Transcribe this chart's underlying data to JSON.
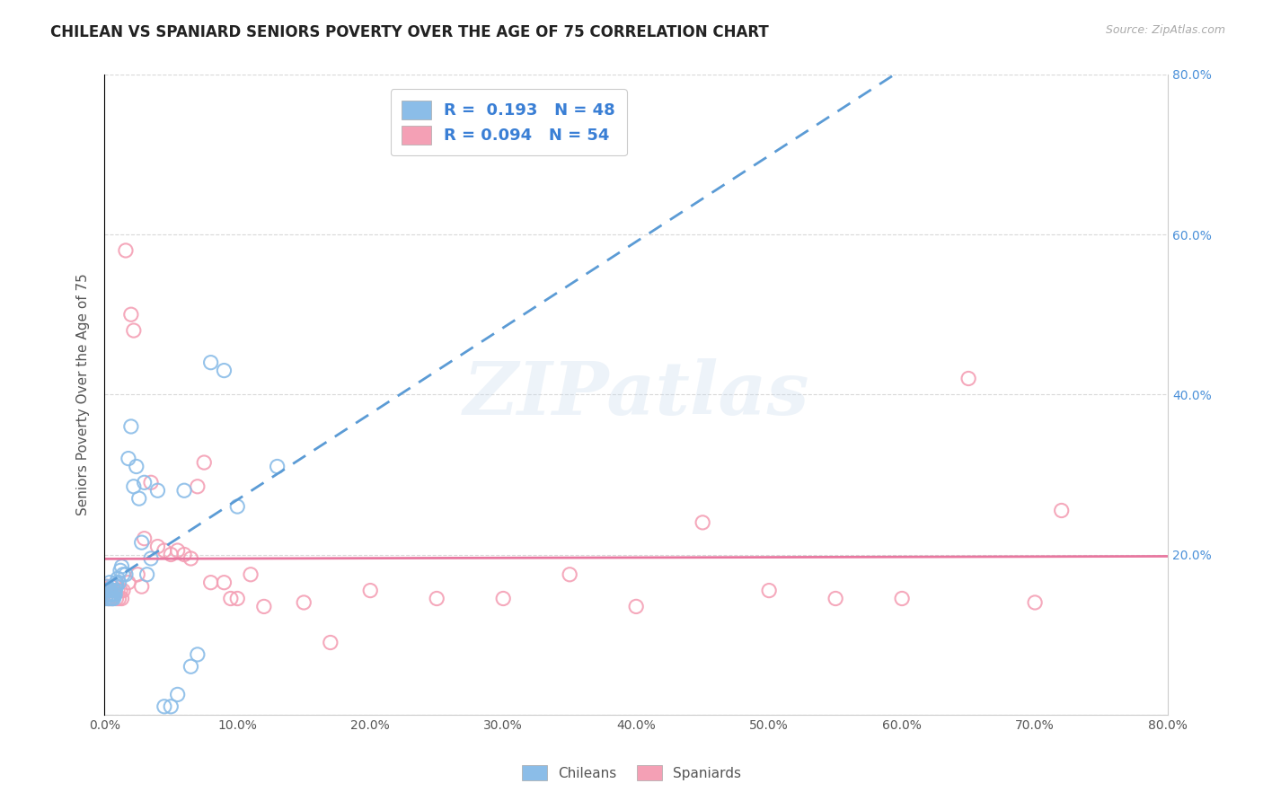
{
  "title": "CHILEAN VS SPANIARD SENIORS POVERTY OVER THE AGE OF 75 CORRELATION CHART",
  "source": "Source: ZipAtlas.com",
  "ylabel": "Seniors Poverty Over the Age of 75",
  "xlim": [
    0.0,
    0.8
  ],
  "ylim": [
    0.0,
    0.8
  ],
  "xticks": [
    0.0,
    0.1,
    0.2,
    0.3,
    0.4,
    0.5,
    0.6,
    0.7,
    0.8
  ],
  "right_ytick_labels": [
    "20.0%",
    "40.0%",
    "60.0%",
    "80.0%"
  ],
  "right_ytick_positions": [
    0.2,
    0.4,
    0.6,
    0.8
  ],
  "legend_entry1": "R =  0.193   N = 48",
  "legend_entry2": "R = 0.094   N = 54",
  "chileans_color": "#8bbde8",
  "spaniards_color": "#f4a0b5",
  "chileans_line_color": "#5b9bd5",
  "spaniards_line_color": "#e878a0",
  "watermark_text": "ZIPatlas",
  "chileans_x": [
    0.001,
    0.001,
    0.002,
    0.002,
    0.003,
    0.003,
    0.003,
    0.004,
    0.004,
    0.004,
    0.005,
    0.005,
    0.005,
    0.006,
    0.006,
    0.006,
    0.007,
    0.007,
    0.008,
    0.008,
    0.009,
    0.009,
    0.01,
    0.011,
    0.012,
    0.013,
    0.014,
    0.016,
    0.018,
    0.02,
    0.022,
    0.024,
    0.026,
    0.028,
    0.03,
    0.032,
    0.035,
    0.04,
    0.045,
    0.05,
    0.055,
    0.06,
    0.065,
    0.07,
    0.08,
    0.09,
    0.1,
    0.13
  ],
  "chileans_y": [
    0.155,
    0.145,
    0.16,
    0.15,
    0.155,
    0.145,
    0.155,
    0.15,
    0.155,
    0.165,
    0.15,
    0.145,
    0.155,
    0.15,
    0.145,
    0.16,
    0.155,
    0.145,
    0.15,
    0.155,
    0.16,
    0.165,
    0.17,
    0.165,
    0.18,
    0.185,
    0.175,
    0.175,
    0.32,
    0.36,
    0.285,
    0.31,
    0.27,
    0.215,
    0.29,
    0.175,
    0.195,
    0.28,
    0.01,
    0.01,
    0.025,
    0.28,
    0.06,
    0.075,
    0.44,
    0.43,
    0.26,
    0.31
  ],
  "spaniards_x": [
    0.001,
    0.002,
    0.003,
    0.003,
    0.004,
    0.004,
    0.005,
    0.005,
    0.006,
    0.006,
    0.007,
    0.008,
    0.009,
    0.01,
    0.011,
    0.012,
    0.013,
    0.014,
    0.016,
    0.018,
    0.02,
    0.022,
    0.025,
    0.028,
    0.03,
    0.035,
    0.04,
    0.045,
    0.05,
    0.055,
    0.06,
    0.065,
    0.07,
    0.075,
    0.08,
    0.09,
    0.095,
    0.1,
    0.11,
    0.12,
    0.15,
    0.17,
    0.2,
    0.25,
    0.3,
    0.35,
    0.4,
    0.45,
    0.5,
    0.55,
    0.6,
    0.65,
    0.7,
    0.72
  ],
  "spaniards_y": [
    0.16,
    0.155,
    0.145,
    0.155,
    0.145,
    0.155,
    0.15,
    0.16,
    0.145,
    0.155,
    0.15,
    0.16,
    0.145,
    0.155,
    0.145,
    0.155,
    0.145,
    0.155,
    0.58,
    0.165,
    0.5,
    0.48,
    0.175,
    0.16,
    0.22,
    0.29,
    0.21,
    0.205,
    0.2,
    0.205,
    0.2,
    0.195,
    0.285,
    0.315,
    0.165,
    0.165,
    0.145,
    0.145,
    0.175,
    0.135,
    0.14,
    0.09,
    0.155,
    0.145,
    0.145,
    0.175,
    0.135,
    0.24,
    0.155,
    0.145,
    0.145,
    0.42,
    0.14,
    0.255
  ],
  "background_color": "#ffffff",
  "grid_color": "#d0d0d0"
}
